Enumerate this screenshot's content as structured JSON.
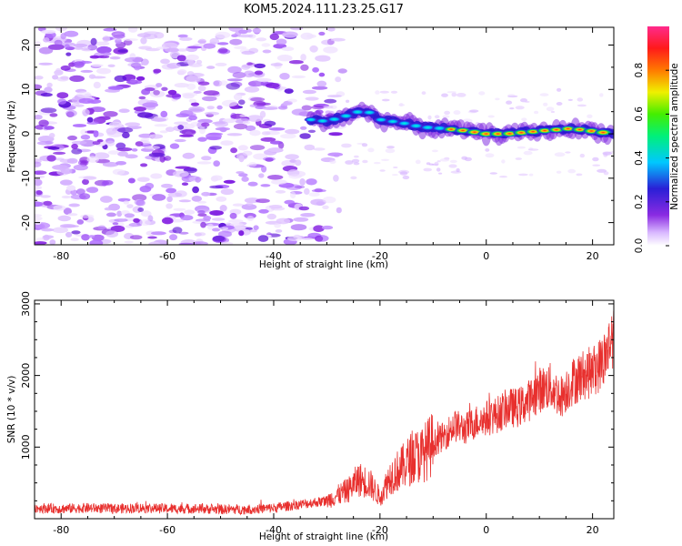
{
  "title": "KOM5.2024.111.23.25.G17",
  "colors": {
    "snr_line": "#e8302e",
    "axes": "#000000",
    "background": "#ffffff"
  },
  "chart_data": [
    {
      "type": "heatmap",
      "xlabel": "Height of straight line (km)",
      "ylabel": "Frequency (Hz)",
      "xlim": [
        -85,
        24
      ],
      "ylim": [
        -25,
        24
      ],
      "xticks": [
        -80,
        -60,
        -40,
        -20,
        0,
        20
      ],
      "yticks": [
        -20,
        -10,
        0,
        10,
        20
      ],
      "grid": false,
      "colorbar": {
        "label": "Normalized spectral amplitude",
        "range": [
          0,
          1
        ],
        "ticks": [
          0.0,
          0.2,
          0.4,
          0.6,
          0.8
        ],
        "colormap": "rainbow (white-purple-blue-cyan-green-yellow-red-pink)"
      },
      "ridge": {
        "description": "Dominant frequency ridge",
        "x": [
          -33,
          -30,
          -27,
          -24,
          -22,
          -20,
          -16,
          -12,
          -8,
          -4,
          0,
          4,
          8,
          12,
          16,
          20,
          24
        ],
        "frequency": [
          3.2,
          2.8,
          3.8,
          5.0,
          4.8,
          3.2,
          2.5,
          1.5,
          1.2,
          0.7,
          0.0,
          0.0,
          0.4,
          0.8,
          1.2,
          0.6,
          0.0
        ],
        "amplitude": [
          0.35,
          0.45,
          0.5,
          0.5,
          0.45,
          0.4,
          0.45,
          0.55,
          0.55,
          0.7,
          0.8,
          0.78,
          0.7,
          0.65,
          0.6,
          0.75,
          0.85
        ]
      }
    },
    {
      "type": "line",
      "xlabel": "Height of straight line (km)",
      "ylabel": "SNR (10 * v/v)",
      "xlim": [
        -85,
        24
      ],
      "ylim": [
        0,
        3050
      ],
      "xticks": [
        -80,
        -60,
        -40,
        -20,
        0,
        20
      ],
      "yticks": [
        1000,
        2000,
        3000
      ],
      "grid": false,
      "series": [
        {
          "x": [
            -85,
            -80,
            -75,
            -70,
            -65,
            -60,
            -55,
            -50,
            -45,
            -40,
            -35,
            -30,
            -26,
            -24,
            -22,
            -20,
            -18,
            -16,
            -14,
            -12,
            -10,
            -8,
            -6,
            -4,
            -2,
            0,
            2,
            4,
            6,
            8,
            10,
            12,
            14,
            16,
            18,
            20,
            22,
            24
          ],
          "values": [
            150,
            140,
            150,
            140,
            150,
            140,
            140,
            130,
            130,
            150,
            200,
            250,
            400,
            550,
            500,
            300,
            600,
            700,
            850,
            900,
            1050,
            1150,
            1300,
            1250,
            1350,
            1400,
            1450,
            1550,
            1550,
            1650,
            1800,
            1850,
            1700,
            1900,
            2000,
            2050,
            2200,
            2600
          ]
        }
      ]
    }
  ]
}
